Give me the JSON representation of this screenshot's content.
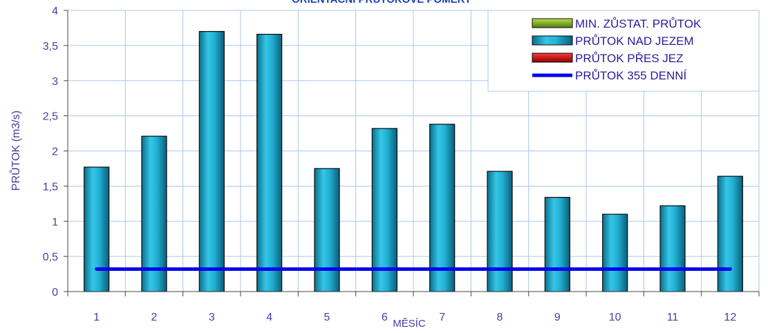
{
  "chart_data": {
    "type": "bar",
    "title": "ORIENTAČNÍ PRŮTOKOVÉ POMĚRY",
    "xlabel": "MĚSÍC",
    "ylabel": "PRŮTOK (m3/s)",
    "ylim": [
      0,
      4
    ],
    "y_ticks": [
      "0",
      "0,5",
      "1",
      "1,5",
      "2",
      "2,5",
      "3",
      "3,5",
      "4"
    ],
    "y_tick_values": [
      0,
      0.5,
      1,
      1.5,
      2,
      2.5,
      3,
      3.5,
      4
    ],
    "categories": [
      "1",
      "2",
      "3",
      "4",
      "5",
      "6",
      "7",
      "8",
      "9",
      "10",
      "11",
      "12"
    ],
    "grid": true,
    "legend_position": "top-right",
    "series": [
      {
        "name": "MIN. ZŮSTAT. PRŮTOK",
        "kind": "bar",
        "color": "#6a9a1a",
        "values": [
          0,
          0,
          0,
          0,
          0,
          0,
          0,
          0,
          0,
          0,
          0,
          0
        ]
      },
      {
        "name": "PRŮTOK NAD JEZEM",
        "kind": "bar",
        "color": "#1aa6c8",
        "values": [
          1.77,
          2.21,
          3.7,
          3.66,
          1.75,
          2.32,
          2.38,
          1.71,
          1.34,
          1.1,
          1.22,
          1.64
        ]
      },
      {
        "name": "PRŮTOK PŘES JEZ",
        "kind": "bar",
        "color": "#d40000",
        "values": [
          0,
          0,
          0,
          0,
          0,
          0,
          0,
          0,
          0,
          0,
          0,
          0
        ]
      },
      {
        "name": "PRŮTOK 355 DENNÍ",
        "kind": "line",
        "color": "#0000ee",
        "values": [
          0.32,
          0.32,
          0.32,
          0.32,
          0.32,
          0.32,
          0.32,
          0.32,
          0.32,
          0.32,
          0.32,
          0.32
        ]
      }
    ]
  }
}
